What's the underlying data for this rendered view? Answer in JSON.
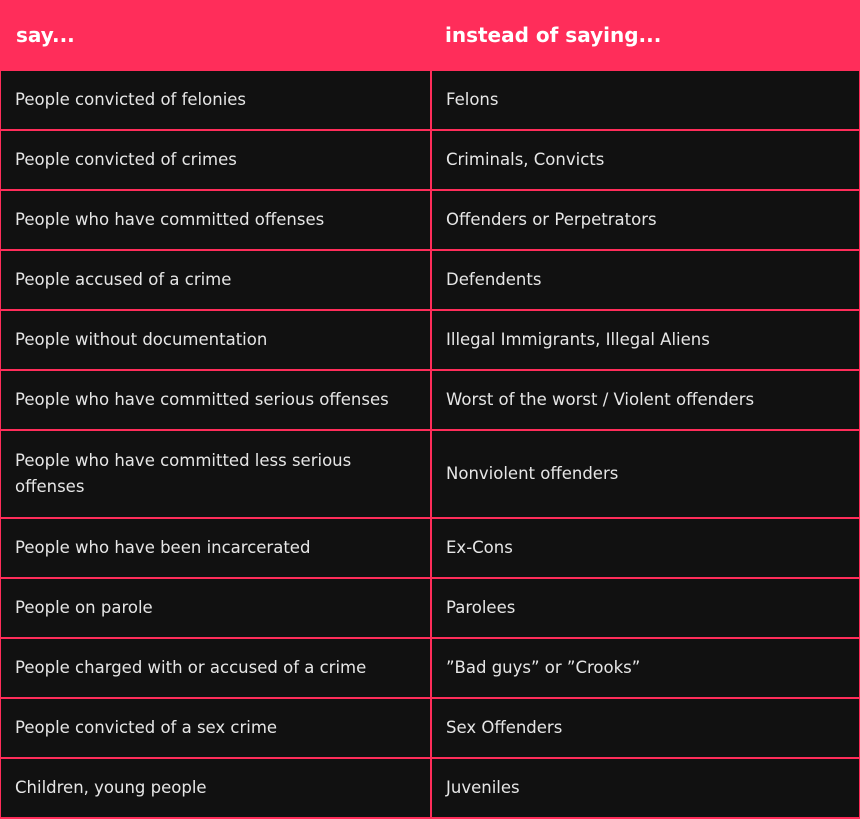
{
  "header": {
    "col1": "say...",
    "col2": "instead of saying..."
  },
  "colors": {
    "accent": "#ff2d5a",
    "cell_bg": "#111111",
    "text": "#e6e6e6"
  },
  "rows": [
    {
      "say": "People convicted of felonies",
      "instead": "Felons"
    },
    {
      "say": "People convicted of crimes",
      "instead": "Criminals, Convicts"
    },
    {
      "say": "People who have committed offenses",
      "instead": "Offenders or Perpetrators"
    },
    {
      "say": "People accused of a crime",
      "instead": "Defendents"
    },
    {
      "say": "People without documentation",
      "instead": "Illegal Immigrants, Illegal Aliens"
    },
    {
      "say": "People who have committed serious offenses",
      "instead": "Worst of the worst / Violent offenders"
    },
    {
      "say": "People who have committed less serious offenses",
      "instead": "Nonviolent offenders"
    },
    {
      "say": "People who have been incarcerated",
      "instead": "Ex-Cons"
    },
    {
      "say": "People on parole",
      "instead": "Parolees"
    },
    {
      "say": "People charged with or accused of a crime",
      "instead": "”Bad guys” or ”Crooks”"
    },
    {
      "say": "People convicted of a sex crime",
      "instead": "Sex Offenders"
    },
    {
      "say": "Children, young people",
      "instead": "Juveniles"
    }
  ]
}
